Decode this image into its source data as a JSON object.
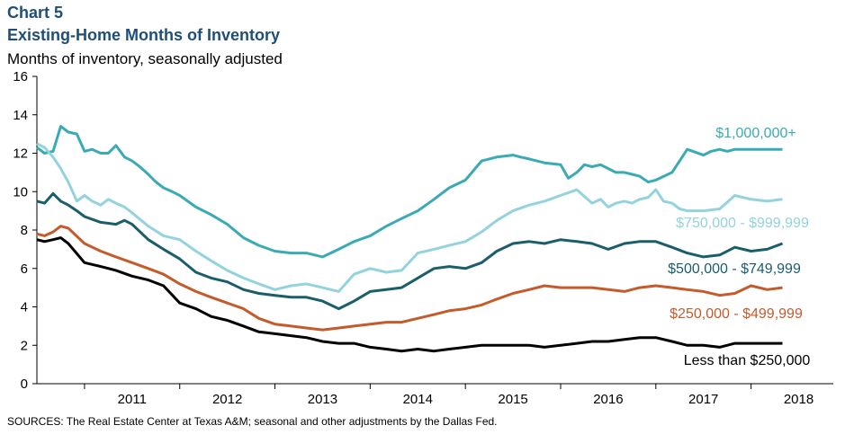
{
  "header": {
    "chart_number": "Chart 5",
    "title": "Existing-Home Months of Inventory",
    "subtitle": "Months of inventory, seasonally adjusted"
  },
  "source": "SOURCES: The Real Estate Center at Texas A&M; seasonal and other adjustments by the Dallas Fed.",
  "chart_data": {
    "type": "line",
    "title": "Existing-Home Months of Inventory",
    "ylabel": "Months of inventory, seasonally adjusted",
    "ylim": [
      0,
      16
    ],
    "yticks": [
      0,
      2,
      4,
      6,
      8,
      10,
      12,
      14,
      16
    ],
    "xlim": [
      2010.5,
      2018.58
    ],
    "xticks": [
      "2011",
      "2012",
      "2013",
      "2014",
      "2015",
      "2016",
      "2017",
      "2018"
    ],
    "grid": false,
    "legend": "direct labels at right",
    "series": [
      {
        "name": "$1,000,000+",
        "color": "#3aabb5",
        "x": [
          2010.5,
          2010.58,
          2010.67,
          2010.75,
          2010.83,
          2010.92,
          2011.0,
          2011.08,
          2011.17,
          2011.25,
          2011.33,
          2011.42,
          2011.5,
          2011.58,
          2011.67,
          2011.75,
          2011.83,
          2011.92,
          2012.0,
          2012.17,
          2012.33,
          2012.5,
          2012.67,
          2012.83,
          2013.0,
          2013.17,
          2013.33,
          2013.5,
          2013.67,
          2013.83,
          2014.0,
          2014.17,
          2014.33,
          2014.5,
          2014.67,
          2014.83,
          2015.0,
          2015.17,
          2015.33,
          2015.5,
          2015.58,
          2015.67,
          2015.83,
          2016.0,
          2016.08,
          2016.17,
          2016.25,
          2016.33,
          2016.42,
          2016.5,
          2016.58,
          2016.67,
          2016.75,
          2016.83,
          2016.92,
          2017.0,
          2017.17,
          2017.33,
          2017.5,
          2017.58,
          2017.67,
          2017.75,
          2017.83,
          2017.92,
          2018.0,
          2018.08,
          2018.17,
          2018.25,
          2018.33
        ],
        "values": [
          12.3,
          12.0,
          12.1,
          13.4,
          13.1,
          13.0,
          12.1,
          12.2,
          12.0,
          12.0,
          12.4,
          11.8,
          11.6,
          11.3,
          10.9,
          10.5,
          10.2,
          10.0,
          9.8,
          9.2,
          8.8,
          8.3,
          7.6,
          7.2,
          6.9,
          6.8,
          6.8,
          6.6,
          7.0,
          7.4,
          7.7,
          8.2,
          8.6,
          9.0,
          9.6,
          10.2,
          10.6,
          11.6,
          11.8,
          11.9,
          11.8,
          11.7,
          11.5,
          11.4,
          10.7,
          11.0,
          11.4,
          11.3,
          11.4,
          11.2,
          11.0,
          11.0,
          10.9,
          10.8,
          10.5,
          10.6,
          11.0,
          12.2,
          11.9,
          12.1,
          12.2,
          12.1,
          12.2,
          12.2,
          12.2,
          12.2,
          12.2,
          12.2,
          12.2
        ]
      },
      {
        "name": "$750,000 - $999,999",
        "color": "#92d3dd",
        "x": [
          2010.5,
          2010.58,
          2010.67,
          2010.75,
          2010.83,
          2010.92,
          2011.0,
          2011.08,
          2011.17,
          2011.25,
          2011.33,
          2011.42,
          2011.5,
          2011.67,
          2011.83,
          2012.0,
          2012.17,
          2012.33,
          2012.5,
          2012.67,
          2012.83,
          2013.0,
          2013.17,
          2013.33,
          2013.5,
          2013.67,
          2013.83,
          2014.0,
          2014.17,
          2014.33,
          2014.5,
          2014.67,
          2014.83,
          2015.0,
          2015.17,
          2015.33,
          2015.5,
          2015.67,
          2015.83,
          2016.0,
          2016.17,
          2016.33,
          2016.42,
          2016.5,
          2016.58,
          2016.67,
          2016.75,
          2016.83,
          2016.92,
          2017.0,
          2017.08,
          2017.17,
          2017.25,
          2017.33,
          2017.5,
          2017.67,
          2017.83,
          2018.0,
          2018.17,
          2018.33
        ],
        "values": [
          12.5,
          12.3,
          11.8,
          11.2,
          10.5,
          9.5,
          9.8,
          9.5,
          9.3,
          9.6,
          9.4,
          9.2,
          8.9,
          8.2,
          7.7,
          7.5,
          6.9,
          6.4,
          5.9,
          5.5,
          5.2,
          4.9,
          5.1,
          5.2,
          5.0,
          4.8,
          5.7,
          6.0,
          5.8,
          5.9,
          6.8,
          7.0,
          7.2,
          7.4,
          7.9,
          8.5,
          9.0,
          9.3,
          9.5,
          9.8,
          10.1,
          9.4,
          9.6,
          9.2,
          9.4,
          9.5,
          9.4,
          9.6,
          9.7,
          10.1,
          9.5,
          9.4,
          9.1,
          9.0,
          9.0,
          9.1,
          9.8,
          9.6,
          9.5,
          9.6
        ]
      },
      {
        "name": "$500,000 - $749,999",
        "color": "#1b5e6b",
        "x": [
          2010.5,
          2010.58,
          2010.67,
          2010.75,
          2010.83,
          2010.92,
          2011.0,
          2011.17,
          2011.33,
          2011.42,
          2011.5,
          2011.67,
          2011.83,
          2012.0,
          2012.17,
          2012.33,
          2012.5,
          2012.67,
          2012.83,
          2013.0,
          2013.17,
          2013.33,
          2013.5,
          2013.67,
          2013.83,
          2014.0,
          2014.17,
          2014.33,
          2014.5,
          2014.67,
          2014.83,
          2015.0,
          2015.17,
          2015.33,
          2015.5,
          2015.67,
          2015.83,
          2016.0,
          2016.17,
          2016.33,
          2016.5,
          2016.67,
          2016.83,
          2017.0,
          2017.17,
          2017.33,
          2017.5,
          2017.67,
          2017.83,
          2018.0,
          2018.17,
          2018.33
        ],
        "values": [
          9.5,
          9.4,
          9.9,
          9.5,
          9.3,
          9.0,
          8.7,
          8.4,
          8.3,
          8.5,
          8.3,
          7.5,
          7.0,
          6.5,
          5.8,
          5.5,
          5.3,
          4.9,
          4.7,
          4.6,
          4.5,
          4.5,
          4.3,
          3.9,
          4.3,
          4.8,
          4.9,
          5.0,
          5.5,
          6.0,
          6.1,
          6.0,
          6.3,
          6.9,
          7.3,
          7.4,
          7.3,
          7.5,
          7.4,
          7.3,
          7.0,
          7.3,
          7.4,
          7.4,
          7.1,
          6.8,
          6.6,
          6.7,
          7.1,
          6.9,
          7.0,
          7.3
        ]
      },
      {
        "name": "$250,000 - $499,999",
        "color": "#c55a2b",
        "x": [
          2010.5,
          2010.58,
          2010.67,
          2010.75,
          2010.83,
          2011.0,
          2011.17,
          2011.33,
          2011.5,
          2011.67,
          2011.83,
          2012.0,
          2012.17,
          2012.33,
          2012.5,
          2012.67,
          2012.83,
          2013.0,
          2013.17,
          2013.33,
          2013.5,
          2013.67,
          2013.83,
          2014.0,
          2014.17,
          2014.33,
          2014.5,
          2014.67,
          2014.83,
          2015.0,
          2015.17,
          2015.33,
          2015.5,
          2015.67,
          2015.83,
          2016.0,
          2016.17,
          2016.33,
          2016.5,
          2016.67,
          2016.83,
          2017.0,
          2017.17,
          2017.33,
          2017.5,
          2017.67,
          2017.83,
          2018.0,
          2018.17,
          2018.33
        ],
        "values": [
          7.8,
          7.7,
          7.9,
          8.2,
          8.1,
          7.3,
          6.9,
          6.6,
          6.3,
          6.0,
          5.7,
          5.2,
          4.8,
          4.5,
          4.2,
          3.9,
          3.4,
          3.1,
          3.0,
          2.9,
          2.8,
          2.9,
          3.0,
          3.1,
          3.2,
          3.2,
          3.4,
          3.6,
          3.8,
          3.9,
          4.1,
          4.4,
          4.7,
          4.9,
          5.1,
          5.0,
          5.0,
          5.0,
          4.9,
          4.8,
          5.0,
          5.1,
          5.0,
          4.9,
          4.8,
          4.6,
          4.7,
          5.1,
          4.9,
          5.0
        ]
      },
      {
        "name": "Less than $250,000",
        "color": "#000000",
        "x": [
          2010.5,
          2010.58,
          2010.67,
          2010.75,
          2010.83,
          2011.0,
          2011.17,
          2011.33,
          2011.5,
          2011.67,
          2011.83,
          2012.0,
          2012.17,
          2012.33,
          2012.5,
          2012.67,
          2012.83,
          2013.0,
          2013.17,
          2013.33,
          2013.5,
          2013.67,
          2013.83,
          2014.0,
          2014.17,
          2014.33,
          2014.5,
          2014.67,
          2014.83,
          2015.0,
          2015.17,
          2015.33,
          2015.5,
          2015.67,
          2015.83,
          2016.0,
          2016.17,
          2016.33,
          2016.5,
          2016.67,
          2016.83,
          2017.0,
          2017.17,
          2017.33,
          2017.5,
          2017.67,
          2017.83,
          2018.0,
          2018.17,
          2018.33
        ],
        "values": [
          7.5,
          7.4,
          7.5,
          7.6,
          7.3,
          6.3,
          6.1,
          5.9,
          5.6,
          5.4,
          5.1,
          4.2,
          3.9,
          3.5,
          3.3,
          3.0,
          2.7,
          2.6,
          2.5,
          2.4,
          2.2,
          2.1,
          2.1,
          1.9,
          1.8,
          1.7,
          1.8,
          1.7,
          1.8,
          1.9,
          2.0,
          2.0,
          2.0,
          2.0,
          1.9,
          2.0,
          2.1,
          2.2,
          2.2,
          2.3,
          2.4,
          2.4,
          2.2,
          2.0,
          2.0,
          1.9,
          2.1,
          2.1,
          2.1,
          2.1
        ]
      }
    ]
  }
}
